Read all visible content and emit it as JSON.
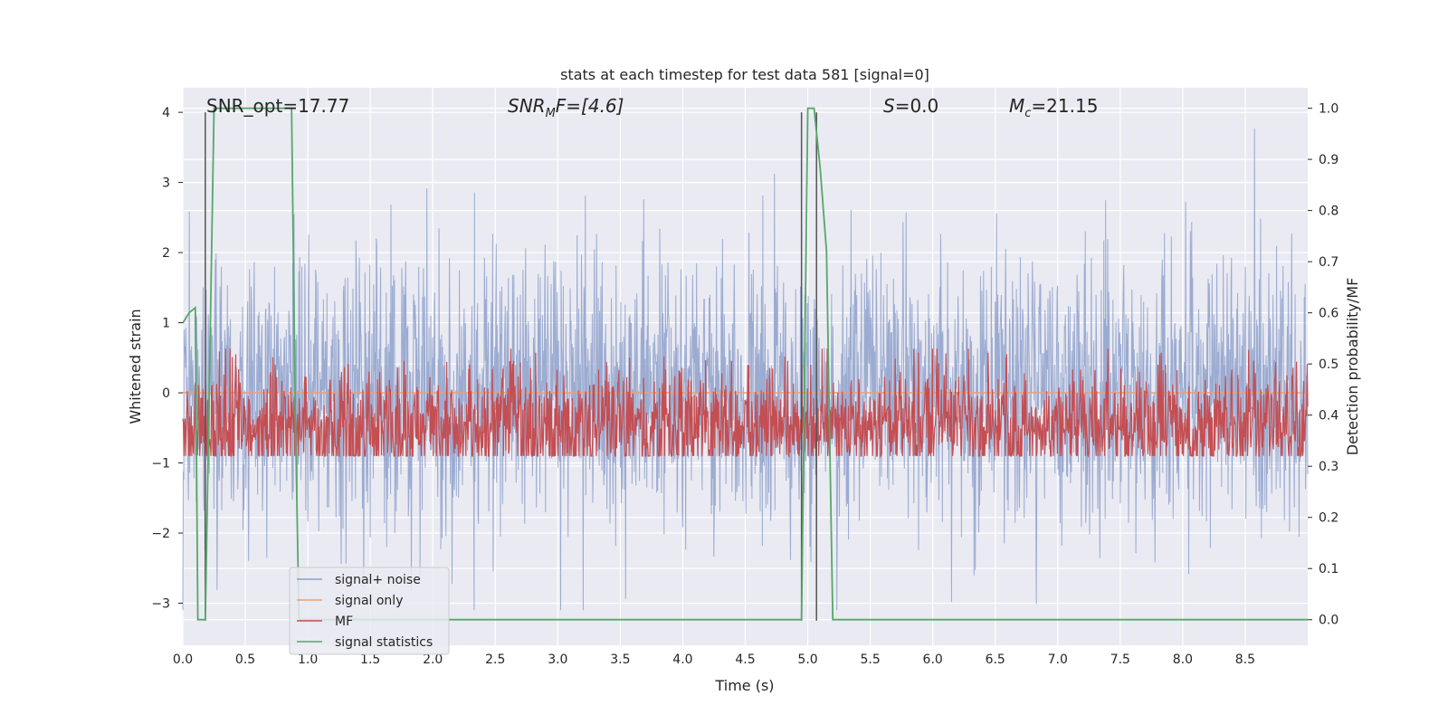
{
  "chart_data": {
    "type": "line",
    "title": "stats at each timestep for test data 581 [signal=0]",
    "xlabel": "Time (s)",
    "ylabel": "Whitened strain",
    "ylabel_right": "Detection probability/MF",
    "xlim": [
      0.0,
      9.0
    ],
    "ylim": [
      -3.6,
      4.35
    ],
    "ylim_right": [
      -0.05,
      1.04
    ],
    "xticks": [
      0.0,
      0.5,
      1.0,
      1.5,
      2.0,
      2.5,
      3.0,
      3.5,
      4.0,
      4.5,
      5.0,
      5.5,
      6.0,
      6.5,
      7.0,
      7.5,
      8.0,
      8.5
    ],
    "xtick_labels": [
      "0.0",
      "0.5",
      "1.0",
      "1.5",
      "2.0",
      "2.5",
      "3.0",
      "3.5",
      "4.0",
      "4.5",
      "5.0",
      "5.5",
      "6.0",
      "6.5",
      "7.0",
      "7.5",
      "8.0",
      "8.5"
    ],
    "yticks": [
      -3,
      -2,
      -1,
      0,
      1,
      2,
      3,
      4
    ],
    "ytick_labels": [
      "−3",
      "−2",
      "−1",
      "0",
      "1",
      "2",
      "3",
      "4"
    ],
    "yticks_right": [
      0.0,
      0.1,
      0.2,
      0.3,
      0.4,
      0.5,
      0.6,
      0.7,
      0.8,
      0.9,
      1.0
    ],
    "ytick_labels_right": [
      "0.0",
      "0.1",
      "0.2",
      "0.3",
      "0.4",
      "0.5",
      "0.6",
      "0.7",
      "0.8",
      "0.9",
      "1.0"
    ],
    "annotations": {
      "snr_opt": "SNR_opt=17.77",
      "snr_mf_main": "SNR",
      "snr_mf_sub": "M",
      "snr_mf_rest": "F=[4.6]",
      "s_main": "S",
      "s_rest": "=0.0",
      "mc_main": "M",
      "mc_sub": "c",
      "mc_rest": "=21.15"
    },
    "legend": {
      "position": "lower-left",
      "entries": [
        {
          "label": "signal+ noise",
          "color": "#8da0cb"
        },
        {
          "label": "signal only",
          "color": "#e8a07a"
        },
        {
          "label": "MF",
          "color": "#c44e52"
        },
        {
          "label": "signal statistics",
          "color": "#55a868"
        }
      ]
    },
    "series": [
      {
        "name": "signal+ noise",
        "color": "#8da0cb",
        "kind": "noise",
        "t_start": 0.0,
        "t_end": 9.0,
        "std": 0.95,
        "max": 4.0,
        "min": -3.1
      },
      {
        "name": "signal only",
        "color": "#e8a07a",
        "kind": "flat",
        "value": 0.0
      },
      {
        "name": "MF",
        "color": "#c44e52",
        "kind": "mf",
        "baseline_right": 0.38,
        "spread_right": 0.06
      },
      {
        "name": "signal statistics",
        "color": "#55a868",
        "kind": "line",
        "axis": "right",
        "x": [
          0.0,
          0.05,
          0.1,
          0.12,
          0.18,
          0.25,
          0.35,
          0.5,
          0.7,
          0.87,
          0.9,
          0.93,
          0.96,
          1.0,
          2.0,
          3.0,
          4.0,
          4.9,
          4.95,
          5.0,
          5.05,
          5.1,
          5.15,
          5.2,
          5.25,
          6.0,
          7.0,
          8.0,
          9.0
        ],
        "y": [
          0.58,
          0.6,
          0.61,
          0.0,
          0.0,
          1.0,
          1.0,
          1.0,
          1.0,
          1.0,
          0.4,
          0.0,
          0.0,
          0.0,
          0.0,
          0.0,
          0.0,
          0.0,
          0.0,
          1.0,
          1.0,
          0.88,
          0.72,
          0.0,
          0.0,
          0.0,
          0.0,
          0.0,
          0.0
        ]
      }
    ],
    "vlines": [
      0.18,
      4.95,
      5.07
    ]
  }
}
